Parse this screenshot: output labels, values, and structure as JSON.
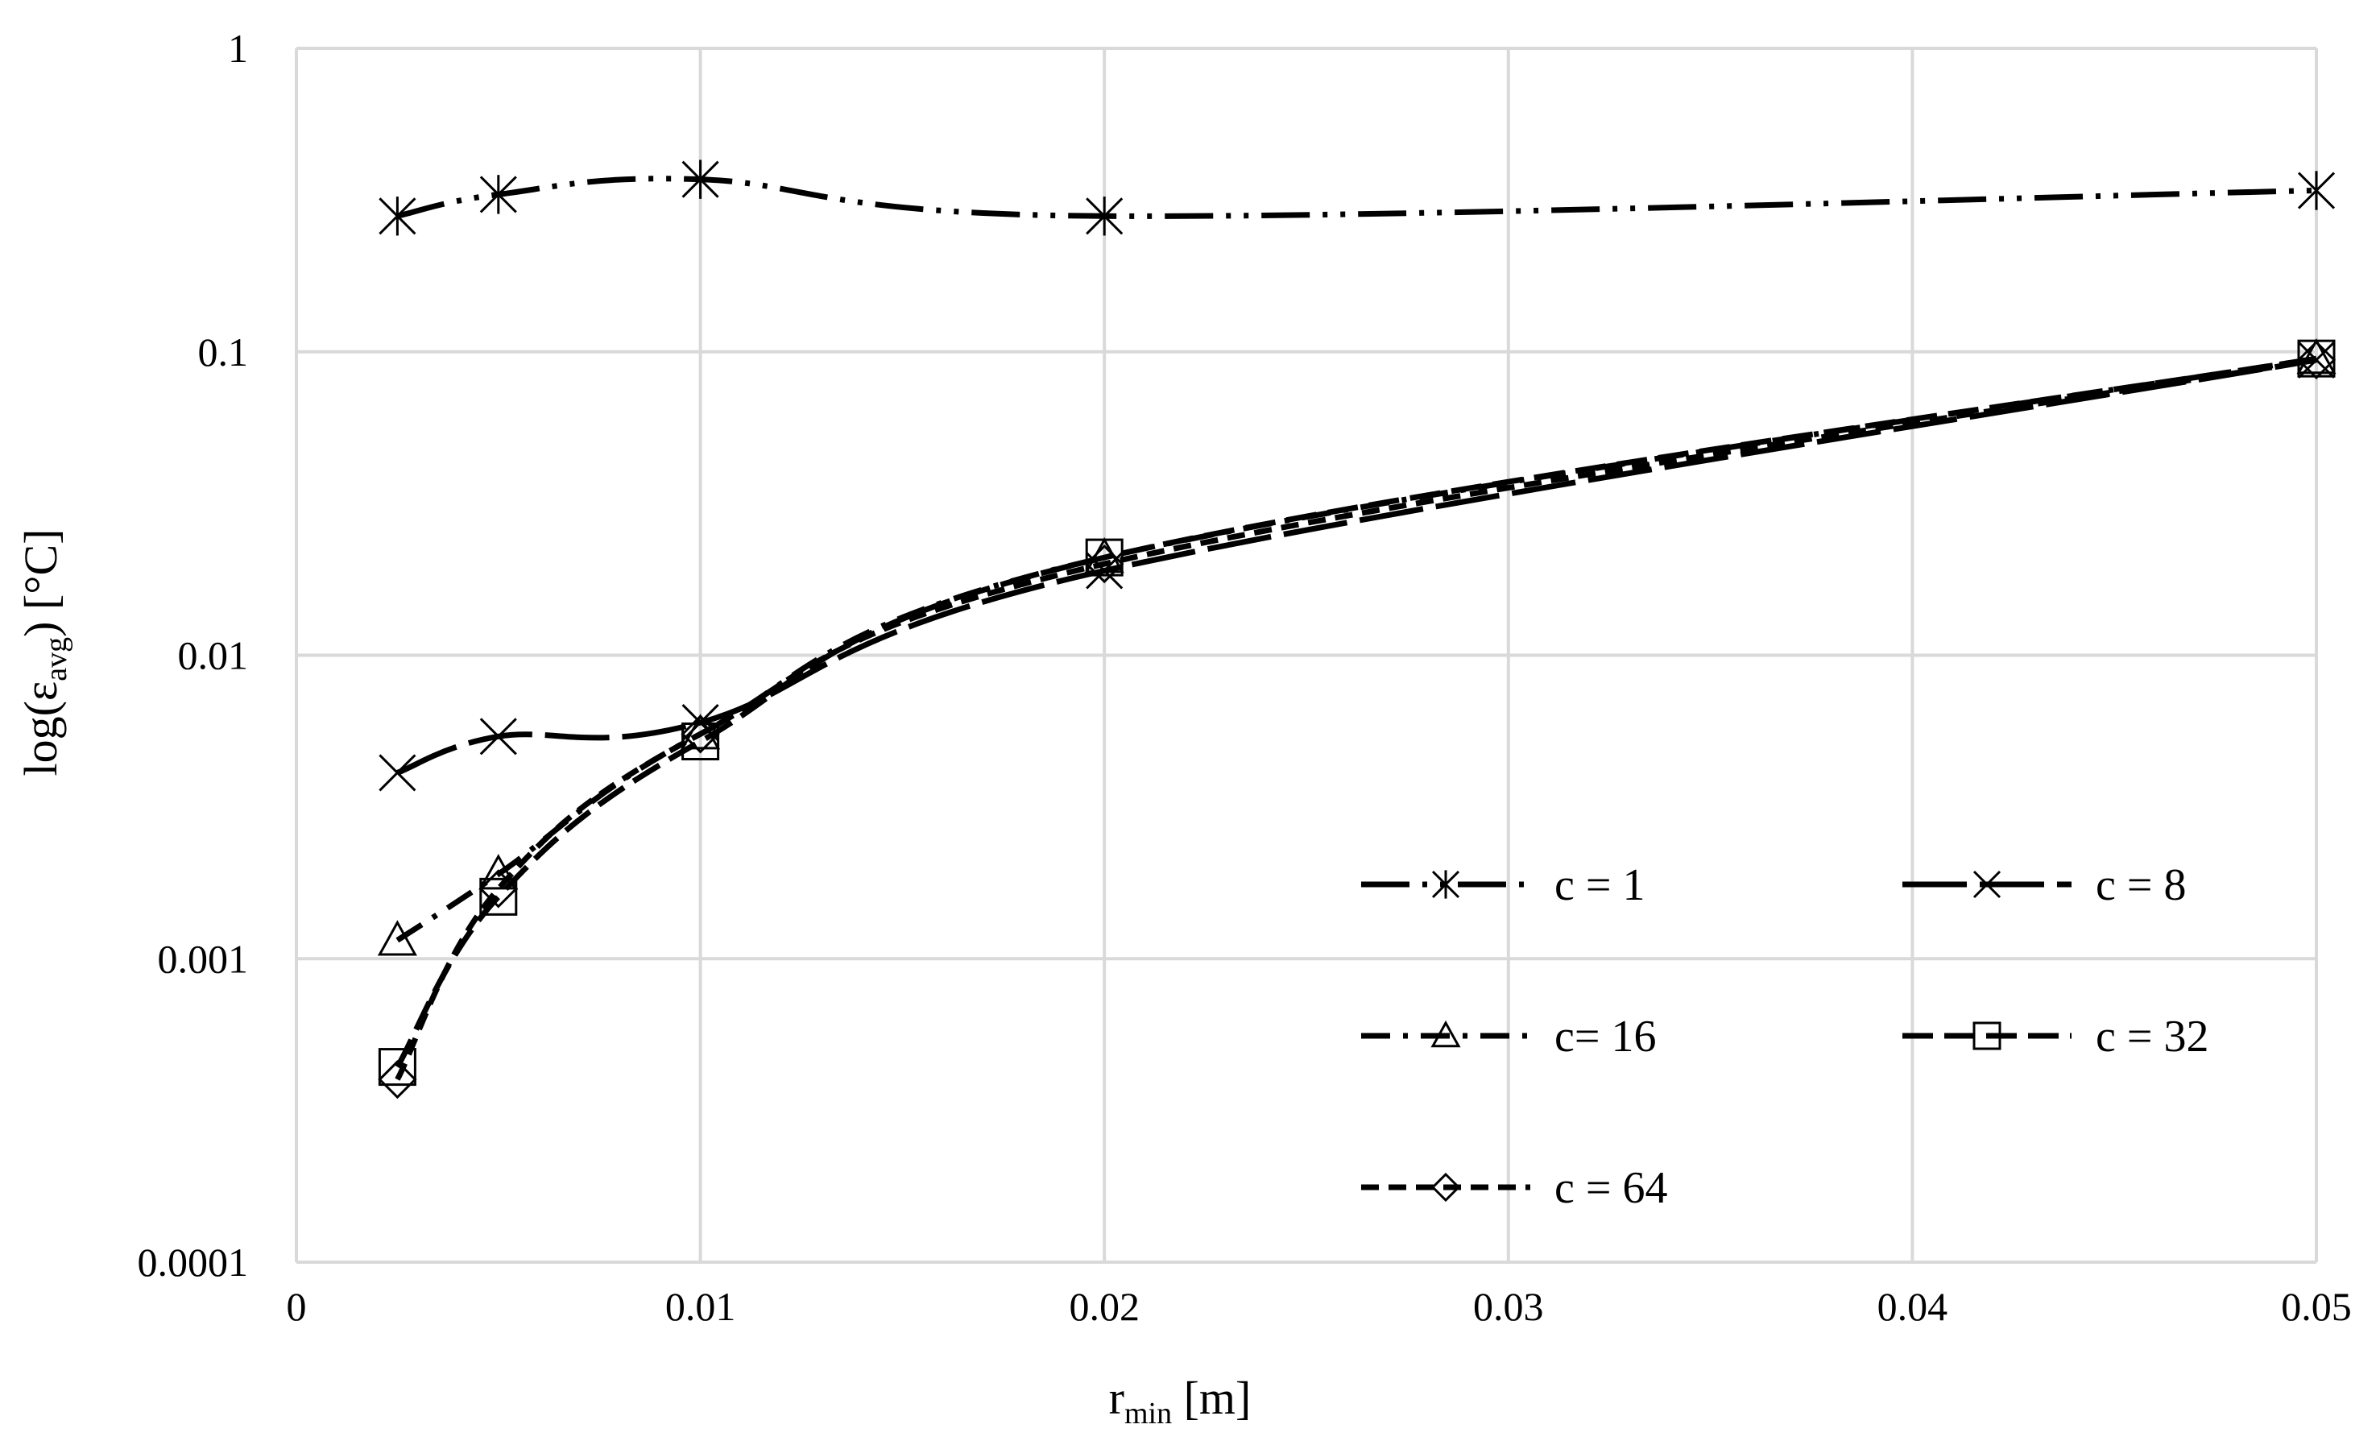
{
  "chart_data": {
    "type": "line",
    "title": "",
    "xlabel": {
      "main": "r",
      "sub": "min",
      "unit": " [m]"
    },
    "ylabel": {
      "main": "log(ε",
      "sub": "avg",
      "unit": ") [°C]"
    },
    "xlim": [
      0,
      0.05
    ],
    "ylim": [
      0.0001,
      1
    ],
    "yscale": "log",
    "grid": true,
    "x_ticks": [
      "0",
      "0.01",
      "0.02",
      "0.03",
      "0.04",
      "0.05"
    ],
    "y_ticks": [
      "0.0001",
      "0.001",
      "0.01",
      "0.1",
      "1"
    ],
    "legend_position": "inside-lower-right",
    "series": [
      {
        "name": "c = 1",
        "marker": "asterisk",
        "dash": "longdash-dot-dot",
        "x": [
          0.0025,
          0.005,
          0.01,
          0.02,
          0.05
        ],
        "y": [
          0.28,
          0.33,
          0.37,
          0.28,
          0.34
        ]
      },
      {
        "name": "c = 8",
        "marker": "x",
        "dash": "longdash",
        "x": [
          0.0025,
          0.005,
          0.01,
          0.02,
          0.05
        ],
        "y": [
          0.0041,
          0.0054,
          0.006,
          0.019,
          0.094
        ]
      },
      {
        "name": "c= 16",
        "marker": "triangle",
        "dash": "dash-dot",
        "x": [
          0.0025,
          0.005,
          0.01,
          0.02,
          0.05
        ],
        "y": [
          0.00115,
          0.0019,
          0.0055,
          0.021,
          0.095
        ]
      },
      {
        "name": "c = 32",
        "marker": "square",
        "dash": "dash",
        "x": [
          0.0025,
          0.005,
          0.01,
          0.02,
          0.05
        ],
        "y": [
          0.00044,
          0.0016,
          0.0052,
          0.021,
          0.095
        ]
      },
      {
        "name": "c = 64",
        "marker": "diamond",
        "dash": "shortdash",
        "x": [
          0.0025,
          0.005,
          0.01,
          0.02,
          0.05
        ],
        "y": [
          0.0004,
          0.0017,
          0.0055,
          0.02,
          0.094
        ]
      }
    ]
  }
}
